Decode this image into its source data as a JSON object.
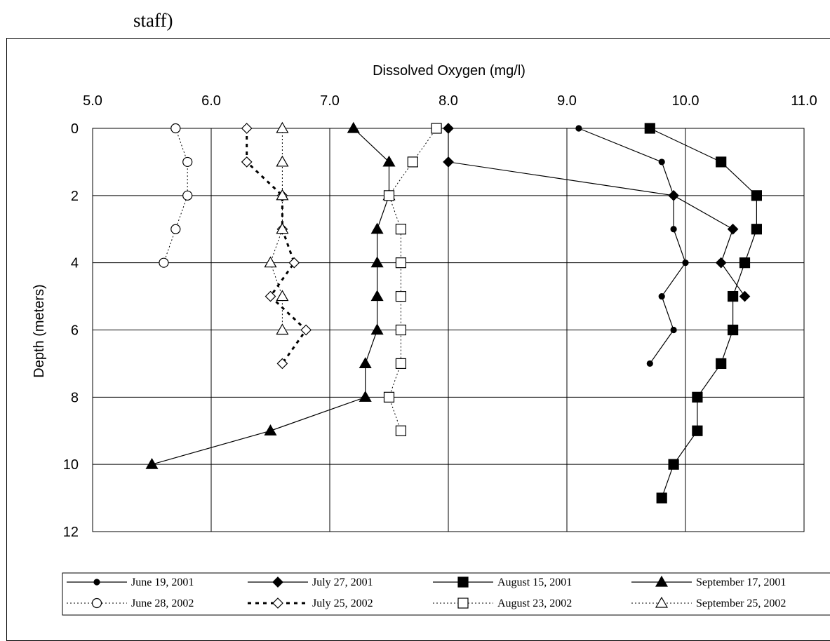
{
  "page": {
    "heading_fragment": "staff)"
  },
  "chart_data": {
    "type": "line",
    "title": "",
    "xlabel": "Dissolved Oxygen (mg/l)",
    "ylabel": "Depth (meters)",
    "xlim": [
      5.0,
      11.0
    ],
    "ylim": [
      0,
      12
    ],
    "x_ticks": [
      "5.0",
      "6.0",
      "7.0",
      "8.0",
      "9.0",
      "10.0",
      "11.0"
    ],
    "y_ticks": [
      "0",
      "2",
      "4",
      "6",
      "8",
      "10",
      "12"
    ],
    "x_axis_position": "top",
    "y_axis_inverted": true,
    "grid": true,
    "legend_position": "bottom",
    "series": [
      {
        "name": "June 19, 2001",
        "line": "solid",
        "marker": "dot",
        "filled": true,
        "x": [
          9.1,
          9.8,
          9.9,
          9.9,
          10.0,
          9.8,
          9.9,
          9.7
        ],
        "y": [
          0,
          1,
          2,
          3,
          4,
          5,
          6,
          7
        ]
      },
      {
        "name": "July 27, 2001",
        "line": "solid",
        "marker": "diamond",
        "filled": true,
        "x": [
          8.0,
          8.0,
          9.9,
          10.4,
          10.3,
          10.5
        ],
        "y": [
          0,
          1,
          2,
          3,
          4,
          5
        ]
      },
      {
        "name": "August 15, 2001",
        "line": "solid",
        "marker": "square",
        "filled": true,
        "x": [
          9.7,
          10.3,
          10.6,
          10.6,
          10.5,
          10.4,
          10.4,
          10.3,
          10.1,
          10.1,
          9.9,
          9.8
        ],
        "y": [
          0,
          1,
          2,
          3,
          4,
          5,
          6,
          7,
          8,
          9,
          10,
          11
        ]
      },
      {
        "name": "September 17, 2001",
        "line": "solid",
        "marker": "triangle",
        "filled": true,
        "x": [
          7.2,
          7.5,
          7.5,
          7.4,
          7.4,
          7.4,
          7.4,
          7.3,
          7.3,
          6.5,
          5.5
        ],
        "y": [
          0,
          1,
          2,
          3,
          4,
          5,
          6,
          7,
          8,
          9,
          10
        ]
      },
      {
        "name": "June 28, 2002",
        "line": "dotted",
        "marker": "circle",
        "filled": false,
        "x": [
          5.7,
          5.8,
          5.8,
          5.7,
          5.6
        ],
        "y": [
          0,
          1,
          2,
          3,
          4
        ]
      },
      {
        "name": "July 25, 2002",
        "line": "dashed",
        "marker": "diamond",
        "filled": false,
        "x": [
          6.3,
          6.3,
          6.6,
          6.6,
          6.7,
          6.5,
          6.8,
          6.6
        ],
        "y": [
          0,
          1,
          2,
          3,
          4,
          5,
          6,
          7
        ]
      },
      {
        "name": "August 23, 2002",
        "line": "dotted",
        "marker": "square",
        "filled": false,
        "x": [
          7.9,
          7.7,
          7.5,
          7.6,
          7.6,
          7.6,
          7.6,
          7.6,
          7.5,
          7.6
        ],
        "y": [
          0,
          1,
          2,
          3,
          4,
          5,
          6,
          7,
          8,
          9
        ]
      },
      {
        "name": "September 25, 2002",
        "line": "dotted",
        "marker": "triangle",
        "filled": false,
        "x": [
          6.6,
          6.6,
          6.6,
          6.6,
          6.5,
          6.6,
          6.6
        ],
        "y": [
          0,
          1,
          2,
          3,
          4,
          5,
          6
        ]
      }
    ]
  }
}
